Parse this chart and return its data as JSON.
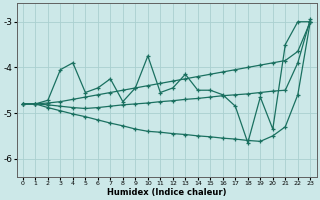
{
  "xlabel": "Humidex (Indice chaleur)",
  "bg_color": "#cce8e8",
  "grid_color": "#aad0d0",
  "line_color": "#1a7060",
  "xlim": [
    -0.5,
    23.5
  ],
  "ylim": [
    -6.4,
    -2.6
  ],
  "xticks": [
    0,
    1,
    2,
    3,
    4,
    5,
    6,
    7,
    8,
    9,
    10,
    11,
    12,
    13,
    14,
    15,
    16,
    17,
    18,
    19,
    20,
    21,
    22,
    23
  ],
  "yticks": [
    -6,
    -5,
    -4,
    -3
  ],
  "line1_x": [
    0,
    1,
    2,
    3,
    4,
    5,
    6,
    7,
    8,
    9,
    10,
    11,
    12,
    13,
    14,
    15,
    16,
    17,
    18,
    19,
    20,
    21,
    22,
    23
  ],
  "line1_y": [
    -4.8,
    -4.8,
    -4.72,
    -4.05,
    -3.9,
    -4.55,
    -4.45,
    -4.25,
    -4.75,
    -4.45,
    -3.75,
    -4.55,
    -4.45,
    -4.15,
    -4.5,
    -4.5,
    -4.6,
    -4.85,
    -5.65,
    -4.65,
    -5.35,
    -3.5,
    -3.0,
    -3.0
  ],
  "line2_x": [
    0,
    1,
    2,
    3,
    4,
    5,
    6,
    7,
    8,
    9,
    10,
    11,
    12,
    13,
    14,
    15,
    16,
    17,
    18,
    19,
    20,
    21,
    22,
    23
  ],
  "line2_y": [
    -4.8,
    -4.8,
    -4.78,
    -4.75,
    -4.7,
    -4.65,
    -4.6,
    -4.55,
    -4.5,
    -4.45,
    -4.4,
    -4.35,
    -4.3,
    -4.25,
    -4.2,
    -4.15,
    -4.1,
    -4.05,
    -4.0,
    -3.95,
    -3.9,
    -3.85,
    -3.65,
    -3.0
  ],
  "line3_x": [
    0,
    1,
    2,
    3,
    4,
    5,
    6,
    7,
    8,
    9,
    10,
    11,
    12,
    13,
    14,
    15,
    16,
    17,
    18,
    19,
    20,
    21,
    22,
    23
  ],
  "line3_y": [
    -4.8,
    -4.8,
    -4.82,
    -4.85,
    -4.88,
    -4.9,
    -4.88,
    -4.85,
    -4.82,
    -4.8,
    -4.78,
    -4.75,
    -4.73,
    -4.7,
    -4.68,
    -4.65,
    -4.62,
    -4.6,
    -4.58,
    -4.55,
    -4.52,
    -4.5,
    -3.9,
    -2.95
  ],
  "line4_x": [
    0,
    1,
    2,
    3,
    4,
    5,
    6,
    7,
    8,
    9,
    10,
    11,
    12,
    13,
    14,
    15,
    16,
    17,
    18,
    19,
    20,
    21,
    22,
    23
  ],
  "line4_y": [
    -4.8,
    -4.8,
    -4.88,
    -4.95,
    -5.02,
    -5.08,
    -5.15,
    -5.22,
    -5.28,
    -5.35,
    -5.4,
    -5.42,
    -5.45,
    -5.47,
    -5.5,
    -5.52,
    -5.55,
    -5.57,
    -5.6,
    -5.62,
    -5.5,
    -5.3,
    -4.6,
    -3.0
  ]
}
